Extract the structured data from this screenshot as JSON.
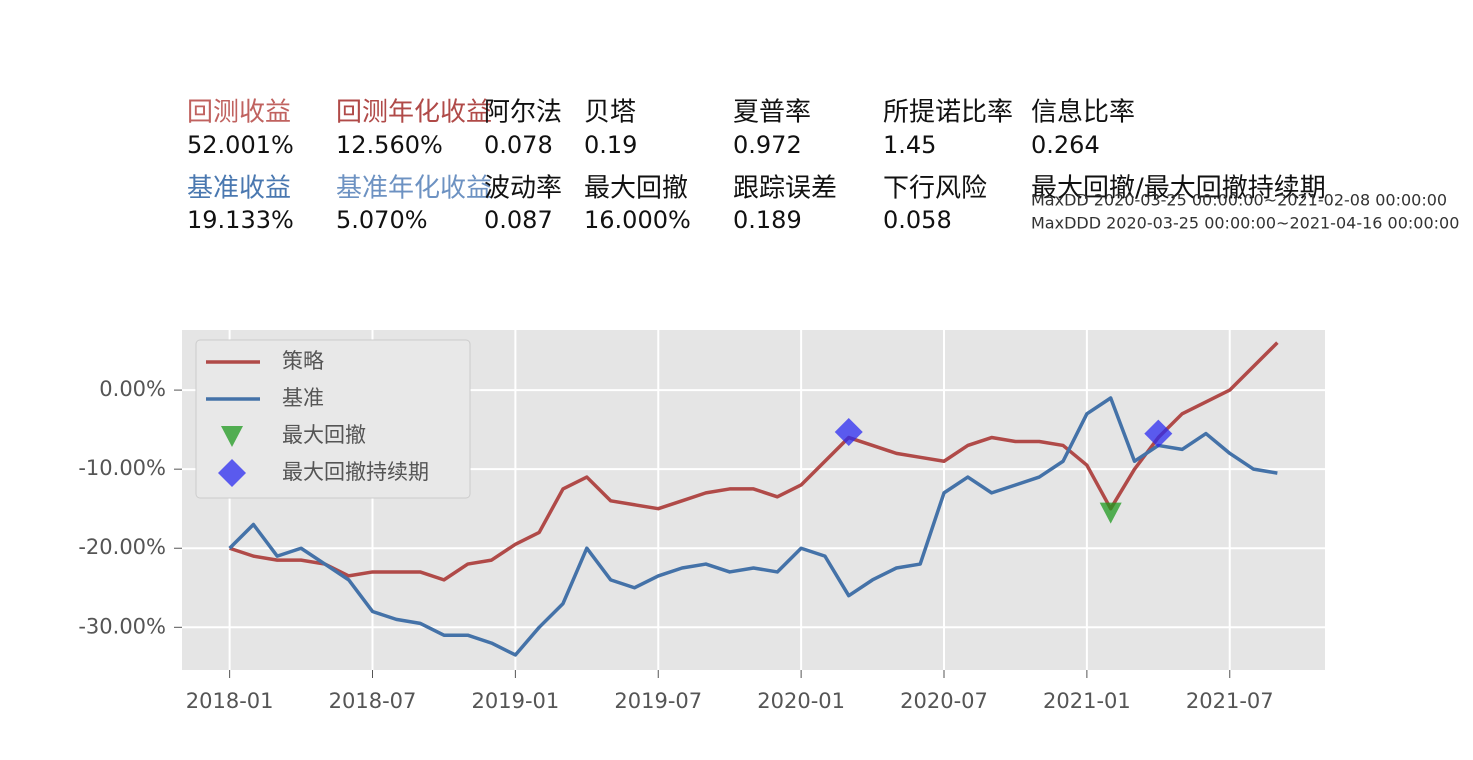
{
  "header": {
    "metrics": [
      {
        "label": "回测收益",
        "value": "52.001%",
        "color": "#c0625f"
      },
      {
        "label": "回测年化收益",
        "value": "12.560%",
        "color": "#b04a48"
      },
      {
        "label": "阿尔法",
        "value": "0.078",
        "color": "#111111"
      },
      {
        "label": "贝塔",
        "value": "0.19",
        "color": "#111111"
      },
      {
        "label": "夏普率",
        "value": "0.972",
        "color": "#111111"
      },
      {
        "label": "所提诺比率",
        "value": "1.45",
        "color": "#111111"
      },
      {
        "label": "信息比率",
        "value": "0.264",
        "color": "#111111"
      },
      {
        "label": "基准收益",
        "value": "19.133%",
        "color": "#4a78b0"
      },
      {
        "label": "基准年化收益",
        "value": "5.070%",
        "color": "#6d92c2"
      },
      {
        "label": "波动率",
        "value": "0.087",
        "color": "#111111"
      },
      {
        "label": "最大回撤",
        "value": "16.000%",
        "color": "#111111"
      },
      {
        "label": "跟踪误差",
        "value": "0.189",
        "color": "#111111"
      },
      {
        "label": "下行风险",
        "value": "0.058",
        "color": "#111111"
      },
      {
        "label": "最大回撤/最大回撤持续期",
        "value": "MaxDD 2020-03-25 00:00:00~2021-02-08 00:00:00",
        "value2": "MaxDDD 2020-03-25 00:00:00~2021-04-16 00:00:00",
        "color": "#111111"
      }
    ]
  },
  "chart_data": {
    "type": "line",
    "x": [
      "2018-01",
      "2018-02",
      "2018-03",
      "2018-04",
      "2018-05",
      "2018-06",
      "2018-07",
      "2018-08",
      "2018-09",
      "2018-10",
      "2018-11",
      "2018-12",
      "2019-01",
      "2019-02",
      "2019-03",
      "2019-04",
      "2019-05",
      "2019-06",
      "2019-07",
      "2019-08",
      "2019-09",
      "2019-10",
      "2019-11",
      "2019-12",
      "2020-01",
      "2020-02",
      "2020-03",
      "2020-04",
      "2020-05",
      "2020-06",
      "2020-07",
      "2020-08",
      "2020-09",
      "2020-10",
      "2020-11",
      "2020-12",
      "2021-01",
      "2021-02",
      "2021-03",
      "2021-04",
      "2021-05",
      "2021-06",
      "2021-07",
      "2021-08",
      "2021-09"
    ],
    "series": [
      {
        "name": "策略",
        "color": "#b04a48",
        "values": [
          -20,
          -21,
          -21.5,
          -21.5,
          -22,
          -23.5,
          -23,
          -23,
          -23,
          -24,
          -22,
          -21.5,
          -19.5,
          -18,
          -12.5,
          -11,
          -14,
          -14.5,
          -15,
          -14,
          -13,
          -12.5,
          -12.5,
          -13.5,
          -12,
          -9,
          -6,
          -7,
          -8,
          -8.5,
          -9,
          -7,
          -6,
          -6.5,
          -6.5,
          -7,
          -9.5,
          -15,
          -10,
          -6,
          -3,
          -1.5,
          0,
          3,
          6
        ]
      },
      {
        "name": "基准",
        "color": "#4472a8",
        "values": [
          -20,
          -17,
          -21,
          -20,
          -22,
          -24,
          -28,
          -29,
          -29.5,
          -31,
          -31,
          -32,
          -33.5,
          -30,
          -27,
          -20,
          -24,
          -25,
          -23.5,
          -22.5,
          -22,
          -23,
          -22.5,
          -23,
          -20,
          -21,
          -26,
          -24,
          -22.5,
          -22,
          -13,
          -11,
          -13,
          -12,
          -11,
          -9,
          -3,
          -1,
          -9,
          -7,
          -7.5,
          -5.5,
          -8,
          -10,
          -10.5
        ]
      },
      {
        "name": "最大回撤",
        "color": "#1f9a1f",
        "marker": "triangle",
        "x": [
          "2021-02"
        ],
        "values": [
          -15.5
        ]
      },
      {
        "name": "最大回撤持续期",
        "color": "#2b2bf0",
        "marker": "diamond",
        "x": [
          "2020-03",
          "2021-04"
        ],
        "values": [
          -5.3,
          -5.5
        ]
      }
    ],
    "xlim": [
      "2017-11",
      "2021-11"
    ],
    "xticks": [
      "2018-01",
      "2018-07",
      "2019-01",
      "2019-07",
      "2020-01",
      "2020-07",
      "2021-01",
      "2021-07"
    ],
    "ylim": [
      -35.4,
      7.6
    ],
    "yticks": [
      {
        "value": -30,
        "label": "-30.00%"
      },
      {
        "value": -20,
        "label": "-20.00%"
      },
      {
        "value": -10,
        "label": "-10.00%"
      },
      {
        "value": 0,
        "label": "0.00%"
      }
    ],
    "grid": true,
    "legend": "upper left"
  }
}
